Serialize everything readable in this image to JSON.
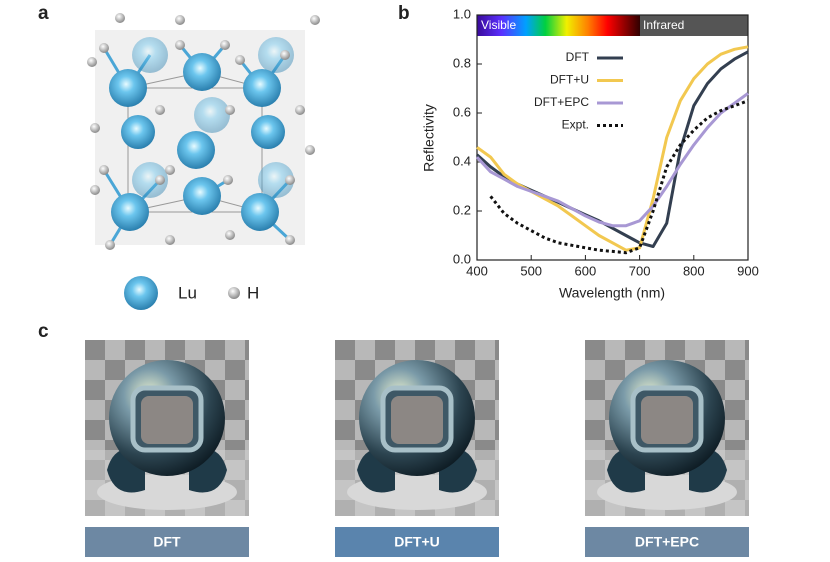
{
  "panels": {
    "a": "a",
    "b": "b",
    "c": "c"
  },
  "atom_legend": {
    "lu": "Lu",
    "h": "H"
  },
  "chart_data": {
    "type": "line",
    "xlabel": "Wavelength (nm)",
    "ylabel": "Reflectivity",
    "band_labels": {
      "visible": "Visible",
      "infrared": "Infrared"
    },
    "x": [
      400,
      425,
      450,
      475,
      500,
      525,
      550,
      575,
      600,
      625,
      650,
      675,
      700,
      725,
      750,
      775,
      800,
      825,
      850,
      875,
      900
    ],
    "xlim": [
      400,
      900
    ],
    "xticks": [
      400,
      500,
      600,
      700,
      800,
      900
    ],
    "ylim": [
      0,
      1
    ],
    "yticks": [
      {
        "value": 0,
        "label": "0.0"
      },
      0.2,
      0.4,
      0.6,
      0.8,
      {
        "value": 1,
        "label": "1.0"
      }
    ],
    "series": [
      {
        "name": "DFT",
        "color": "#333f50",
        "style": "solid",
        "values": [
          0.43,
          0.38,
          0.34,
          0.31,
          0.285,
          0.26,
          0.235,
          0.21,
          0.185,
          0.16,
          0.13,
          0.1,
          0.07,
          0.055,
          0.15,
          0.45,
          0.63,
          0.72,
          0.78,
          0.82,
          0.85
        ]
      },
      {
        "name": "DFT+U",
        "color": "#f2c850",
        "style": "solid",
        "values": [
          0.46,
          0.42,
          0.35,
          0.31,
          0.28,
          0.25,
          0.22,
          0.18,
          0.14,
          0.1,
          0.07,
          0.04,
          0.05,
          0.25,
          0.5,
          0.65,
          0.74,
          0.8,
          0.84,
          0.86,
          0.87
        ]
      },
      {
        "name": "DFT+EPC",
        "color": "#a898d4",
        "style": "solid",
        "values": [
          0.42,
          0.36,
          0.33,
          0.3,
          0.28,
          0.26,
          0.24,
          0.21,
          0.18,
          0.155,
          0.14,
          0.14,
          0.16,
          0.22,
          0.3,
          0.39,
          0.47,
          0.54,
          0.6,
          0.64,
          0.68
        ]
      },
      {
        "name": "Expt.",
        "color": "#111111",
        "style": "dotted",
        "values": [
          null,
          0.26,
          0.19,
          0.15,
          0.12,
          0.09,
          0.07,
          0.06,
          0.05,
          0.04,
          0.035,
          0.03,
          0.05,
          0.2,
          0.38,
          0.47,
          0.53,
          0.58,
          0.61,
          0.63,
          0.65
        ]
      }
    ]
  },
  "renderings": [
    "DFT",
    "DFT+U",
    "DFT+EPC"
  ]
}
